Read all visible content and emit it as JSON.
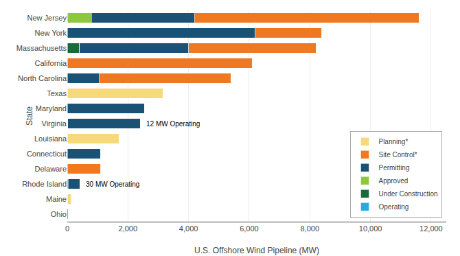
{
  "chart_data": {
    "type": "bar",
    "orientation": "horizontal",
    "stacked": true,
    "categories": [
      "New Jersey",
      "New York",
      "Massachusetts",
      "California",
      "North Carolina",
      "Texas",
      "Maryland",
      "Virginia",
      "Louisiana",
      "Connecticut",
      "Delaware",
      "Rhode Island",
      "Maine",
      "Ohio"
    ],
    "series": [
      {
        "name": "Planning*",
        "color": "#f5d97b",
        "values": [
          0,
          0,
          0,
          0,
          0,
          3150,
          0,
          0,
          1700,
          0,
          0,
          0,
          130,
          0
        ]
      },
      {
        "name": "Site Control*",
        "color": "#f07820",
        "values": [
          7400,
          2200,
          4200,
          6100,
          4350,
          0,
          0,
          0,
          0,
          0,
          1100,
          0,
          0,
          0
        ]
      },
      {
        "name": "Permitting",
        "color": "#1a5276",
        "values": [
          3400,
          6200,
          3600,
          0,
          1050,
          0,
          2550,
          2400,
          0,
          1100,
          0,
          400,
          0,
          30
        ]
      },
      {
        "name": "Approved",
        "color": "#8dc63f",
        "values": [
          800,
          0,
          0,
          0,
          0,
          0,
          0,
          0,
          0,
          0,
          0,
          0,
          0,
          0
        ]
      },
      {
        "name": "Under Construction",
        "color": "#1a6b3c",
        "values": [
          0,
          0,
          400,
          0,
          0,
          0,
          0,
          0,
          0,
          0,
          0,
          0,
          0,
          0
        ]
      },
      {
        "name": "Operating",
        "color": "#29abe2",
        "values": [
          0,
          0,
          0,
          0,
          0,
          0,
          0,
          12,
          0,
          0,
          0,
          30,
          0,
          0
        ]
      }
    ],
    "annotations": [
      {
        "category": "Virginia",
        "text": "12 MW Operating"
      },
      {
        "category": "Rhode Island",
        "text": "30 MW Operating"
      }
    ],
    "xlabel": "U.S. Offshore Wind Pipeline (MW)",
    "ylabel": "State",
    "xlim": [
      0,
      12500
    ],
    "xticks": [
      0,
      {
        "value": 2000,
        "label": "2,000"
      },
      {
        "value": 4000,
        "label": "4,000"
      },
      {
        "value": 6000,
        "label": "6,000"
      },
      {
        "value": 8000,
        "label": "8,000"
      },
      {
        "value": 10000,
        "label": "10,000"
      },
      {
        "value": 12000,
        "label": "12,000"
      }
    ],
    "grid": true,
    "legend": "lower right"
  }
}
